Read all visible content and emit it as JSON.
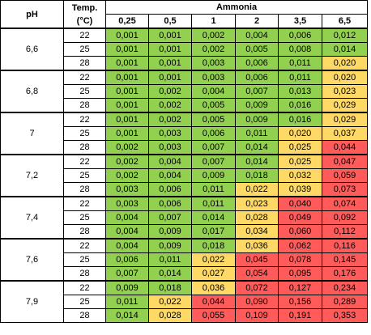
{
  "header": {
    "ph_label": "pH",
    "temp_label_line1": "Temp.",
    "temp_label_line2": "(°C)",
    "ammonia_label": "Ammonia",
    "concentrations": [
      "0,25",
      "0,5",
      "1",
      "2",
      "3,5",
      "6,5"
    ]
  },
  "colors": {
    "green": "#92d050",
    "yellow": "#ffd966",
    "red": "#ff5b5b"
  },
  "groups": [
    {
      "ph": "6,6",
      "rows": [
        {
          "temp": "22",
          "values": [
            "0,001",
            "0,001",
            "0,002",
            "0,004",
            "0,006",
            "0,012"
          ],
          "levels": [
            "g",
            "g",
            "g",
            "g",
            "g",
            "g"
          ]
        },
        {
          "temp": "25",
          "values": [
            "0,001",
            "0,001",
            "0,002",
            "0,005",
            "0,008",
            "0,014"
          ],
          "levels": [
            "g",
            "g",
            "g",
            "g",
            "g",
            "g"
          ]
        },
        {
          "temp": "28",
          "values": [
            "0,001",
            "0,001",
            "0,003",
            "0,006",
            "0,011",
            "0,020"
          ],
          "levels": [
            "g",
            "g",
            "g",
            "g",
            "g",
            "y"
          ]
        }
      ]
    },
    {
      "ph": "6,8",
      "rows": [
        {
          "temp": "22",
          "values": [
            "0,001",
            "0,001",
            "0,003",
            "0,006",
            "0,011",
            "0,020"
          ],
          "levels": [
            "g",
            "g",
            "g",
            "g",
            "g",
            "y"
          ]
        },
        {
          "temp": "25",
          "values": [
            "0,001",
            "0,002",
            "0,004",
            "0,007",
            "0,013",
            "0,023"
          ],
          "levels": [
            "g",
            "g",
            "g",
            "g",
            "g",
            "y"
          ]
        },
        {
          "temp": "28",
          "values": [
            "0,001",
            "0,002",
            "0,005",
            "0,009",
            "0,016",
            "0,029"
          ],
          "levels": [
            "g",
            "g",
            "g",
            "g",
            "g",
            "y"
          ]
        }
      ]
    },
    {
      "ph": "7",
      "rows": [
        {
          "temp": "22",
          "values": [
            "0,001",
            "0,002",
            "0,005",
            "0,009",
            "0,016",
            "0,029"
          ],
          "levels": [
            "g",
            "g",
            "g",
            "g",
            "g",
            "y"
          ]
        },
        {
          "temp": "25",
          "values": [
            "0,001",
            "0,003",
            "0,006",
            "0,011",
            "0,020",
            "0,037"
          ],
          "levels": [
            "g",
            "g",
            "g",
            "g",
            "y",
            "y"
          ]
        },
        {
          "temp": "28",
          "values": [
            "0,002",
            "0,003",
            "0,007",
            "0,014",
            "0,025",
            "0,044"
          ],
          "levels": [
            "g",
            "g",
            "g",
            "g",
            "y",
            "r"
          ]
        }
      ]
    },
    {
      "ph": "7,2",
      "rows": [
        {
          "temp": "22",
          "values": [
            "0,002",
            "0,004",
            "0,007",
            "0,014",
            "0,025",
            "0,047"
          ],
          "levels": [
            "g",
            "g",
            "g",
            "g",
            "y",
            "r"
          ]
        },
        {
          "temp": "25",
          "values": [
            "0,002",
            "0,004",
            "0,009",
            "0,018",
            "0,032",
            "0,059"
          ],
          "levels": [
            "g",
            "g",
            "g",
            "g",
            "y",
            "r"
          ]
        },
        {
          "temp": "28",
          "values": [
            "0,003",
            "0,006",
            "0,011",
            "0,022",
            "0,039",
            "0,073"
          ],
          "levels": [
            "g",
            "g",
            "g",
            "y",
            "y",
            "r"
          ]
        }
      ]
    },
    {
      "ph": "7,4",
      "rows": [
        {
          "temp": "22",
          "values": [
            "0,003",
            "0,006",
            "0,011",
            "0,023",
            "0,040",
            "0,074"
          ],
          "levels": [
            "g",
            "g",
            "g",
            "y",
            "r",
            "r"
          ]
        },
        {
          "temp": "25",
          "values": [
            "0,004",
            "0,007",
            "0,014",
            "0,028",
            "0,049",
            "0,092"
          ],
          "levels": [
            "g",
            "g",
            "g",
            "y",
            "r",
            "r"
          ]
        },
        {
          "temp": "28",
          "values": [
            "0,004",
            "0,009",
            "0,017",
            "0,034",
            "0,060",
            "0,112"
          ],
          "levels": [
            "g",
            "g",
            "g",
            "y",
            "r",
            "r"
          ]
        }
      ]
    },
    {
      "ph": "7,6",
      "rows": [
        {
          "temp": "22",
          "values": [
            "0,004",
            "0,009",
            "0,018",
            "0,036",
            "0,062",
            "0,116"
          ],
          "levels": [
            "g",
            "g",
            "g",
            "y",
            "r",
            "r"
          ]
        },
        {
          "temp": "25",
          "values": [
            "0,006",
            "0,011",
            "0,022",
            "0,045",
            "0,078",
            "0,145"
          ],
          "levels": [
            "g",
            "g",
            "y",
            "r",
            "r",
            "r"
          ]
        },
        {
          "temp": "28",
          "values": [
            "0,007",
            "0,014",
            "0,027",
            "0,054",
            "0,095",
            "0,176"
          ],
          "levels": [
            "g",
            "g",
            "y",
            "r",
            "r",
            "r"
          ]
        }
      ]
    },
    {
      "ph": "7,9",
      "rows": [
        {
          "temp": "22",
          "values": [
            "0,009",
            "0,018",
            "0,036",
            "0,072",
            "0,127",
            "0,234"
          ],
          "levels": [
            "g",
            "g",
            "y",
            "r",
            "r",
            "r"
          ]
        },
        {
          "temp": "25",
          "values": [
            "0,011",
            "0,022",
            "0,044",
            "0,090",
            "0,156",
            "0,289"
          ],
          "levels": [
            "g",
            "y",
            "r",
            "r",
            "r",
            "r"
          ]
        },
        {
          "temp": "28",
          "values": [
            "0,014",
            "0,028",
            "0,055",
            "0,109",
            "0,191",
            "0,353"
          ],
          "levels": [
            "g",
            "y",
            "r",
            "r",
            "r",
            "r"
          ]
        }
      ]
    }
  ]
}
